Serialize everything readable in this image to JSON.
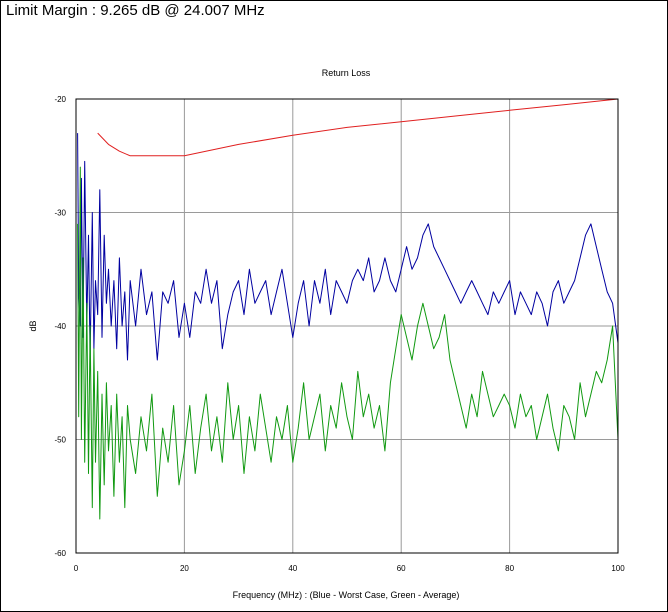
{
  "header": {
    "limit_margin": "Limit Margin : 9.265 dB @ 24.007 MHz"
  },
  "chart_data": {
    "type": "line",
    "title": "Return Loss",
    "xlabel": "Frequency (MHz) : (Blue - Worst Case, Green - Average)",
    "ylabel": "dB",
    "xlim": [
      0,
      100
    ],
    "ylim": [
      -60,
      -20
    ],
    "xticks": [
      0,
      20,
      40,
      60,
      80,
      100
    ],
    "yticks": [
      -20,
      -30,
      -40,
      -50,
      -60
    ],
    "grid": true,
    "colors": {
      "limit": "#e02020",
      "worst": "#0000a0",
      "average": "#119911",
      "grid": "#9a9a9a"
    },
    "series": [
      {
        "key": "limit",
        "x": [
          4,
          6,
          8,
          10,
          20,
          30,
          40,
          50,
          60,
          70,
          80,
          90,
          100
        ],
        "y": [
          -23,
          -24,
          -24.6,
          -25,
          -25,
          -24,
          -23.2,
          -22.5,
          -22,
          -21.5,
          -21,
          -20.5,
          -20
        ]
      },
      {
        "key": "worst",
        "x": [
          0.3,
          0.5,
          0.8,
          1,
          1.3,
          1.6,
          2,
          2.3,
          2.6,
          3,
          3.3,
          3.6,
          4,
          4.4,
          4.8,
          5.2,
          5.6,
          6,
          6.5,
          7,
          7.5,
          8,
          8.5,
          9,
          9.5,
          10,
          11,
          12,
          13,
          14,
          15,
          16,
          17,
          18,
          19,
          20,
          21,
          22,
          23,
          24,
          25,
          26,
          27,
          28,
          29,
          30,
          31,
          32,
          33,
          34,
          35,
          36,
          37,
          38,
          39,
          40,
          41,
          42,
          43,
          44,
          45,
          46,
          47,
          48,
          49,
          50,
          51,
          52,
          53,
          54,
          55,
          56,
          57,
          58,
          59,
          60,
          61,
          62,
          63,
          64,
          65,
          66,
          67,
          68,
          69,
          70,
          71,
          72,
          73,
          74,
          75,
          76,
          77,
          78,
          79,
          80,
          81,
          82,
          83,
          84,
          85,
          86,
          87,
          88,
          89,
          90,
          91,
          92,
          93,
          94,
          95,
          96,
          97,
          98,
          99,
          100
        ],
        "y": [
          -23,
          -37,
          -40,
          -27,
          -41,
          -25.5,
          -40,
          -32,
          -43,
          -30,
          -42,
          -36,
          -39,
          -28,
          -41,
          -32,
          -38,
          -35,
          -40,
          -36,
          -42,
          -34,
          -40,
          -37,
          -43,
          -36,
          -40,
          -35,
          -39,
          -37,
          -43,
          -37,
          -38,
          -36,
          -41,
          -38,
          -41,
          -37,
          -38,
          -35,
          -38,
          -36,
          -42,
          -39,
          -37,
          -36,
          -39,
          -35,
          -38,
          -37,
          -36,
          -39,
          -37,
          -35,
          -38,
          -41,
          -38,
          -36,
          -40,
          -36,
          -38,
          -35,
          -39,
          -36,
          -37,
          -38,
          -36,
          -35,
          -36,
          -34,
          -37,
          -36,
          -34,
          -36,
          -37,
          -35,
          -33,
          -35,
          -34,
          -32,
          -31,
          -33,
          -34,
          -35,
          -36,
          -37,
          -38,
          -37,
          -36,
          -37,
          -38,
          -39,
          -37,
          -38,
          -37,
          -36,
          -39,
          -37,
          -38,
          -39,
          -37,
          -38,
          -40,
          -37,
          -36,
          -38,
          -37,
          -36,
          -34,
          -32,
          -31,
          -33,
          -35,
          -37,
          -38,
          -41.5
        ]
      },
      {
        "key": "average",
        "x": [
          0.3,
          0.5,
          0.8,
          1,
          1.3,
          1.6,
          2,
          2.3,
          2.6,
          3,
          3.3,
          3.6,
          4,
          4.4,
          4.8,
          5.2,
          5.6,
          6,
          6.5,
          7,
          7.5,
          8,
          8.5,
          9,
          9.5,
          10,
          11,
          12,
          13,
          14,
          15,
          16,
          17,
          18,
          19,
          20,
          21,
          22,
          23,
          24,
          25,
          26,
          27,
          28,
          29,
          30,
          31,
          32,
          33,
          34,
          35,
          36,
          37,
          38,
          39,
          40,
          41,
          42,
          43,
          44,
          45,
          46,
          47,
          48,
          49,
          50,
          51,
          52,
          53,
          54,
          55,
          56,
          57,
          58,
          59,
          60,
          61,
          62,
          63,
          64,
          65,
          66,
          67,
          68,
          69,
          70,
          71,
          72,
          73,
          74,
          75,
          76,
          77,
          78,
          79,
          80,
          81,
          82,
          83,
          84,
          85,
          86,
          87,
          88,
          89,
          90,
          91,
          92,
          93,
          94,
          95,
          96,
          97,
          98,
          99,
          100
        ],
        "y": [
          -31,
          -48,
          -26,
          -50,
          -34,
          -52,
          -38,
          -53,
          -40,
          -56,
          -42,
          -52,
          -44,
          -57,
          -46,
          -54,
          -45,
          -51,
          -47,
          -55,
          -46,
          -52,
          -48,
          -56,
          -47,
          -50,
          -53,
          -48,
          -51,
          -46,
          -55,
          -49,
          -52,
          -47,
          -54,
          -51,
          -47,
          -53,
          -49,
          -46,
          -51,
          -48,
          -52,
          -45,
          -50,
          -47,
          -53,
          -48,
          -51,
          -46,
          -49,
          -52,
          -48,
          -50,
          -47,
          -52,
          -49,
          -45,
          -50,
          -48,
          -46,
          -51,
          -47,
          -49,
          -45,
          -48,
          -50,
          -44,
          -48,
          -46,
          -49,
          -47,
          -51,
          -45,
          -42,
          -39,
          -41,
          -43,
          -40,
          -38,
          -40,
          -42,
          -41,
          -39,
          -43,
          -45,
          -47,
          -49,
          -46,
          -48,
          -44,
          -46,
          -48,
          -47,
          -46,
          -47,
          -49,
          -46,
          -48,
          -47,
          -50,
          -48,
          -46,
          -49,
          -51,
          -47,
          -48,
          -50,
          -45,
          -48,
          -46,
          -44,
          -45,
          -43,
          -40,
          -50
        ]
      }
    ]
  }
}
